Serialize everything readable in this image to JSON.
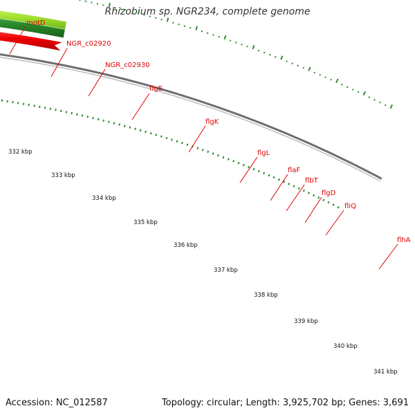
{
  "title": "Rhizobium sp. NGR234, complete genome",
  "footer": {
    "accession": "Accession: NC_012587",
    "stats": "Topology: circular; Length: 3,925,702 bp; Genes: 3,691"
  },
  "colors": {
    "background": "#ffffff",
    "label_red": "#e00000",
    "cds_red": "#ee0000",
    "gene_green": "#2a8a2a",
    "gene_olive": "#6f8f22",
    "gene_light_green": "#a6e234",
    "backbone": "#8a8a8a",
    "ruler_dots": "#2f8a2f"
  },
  "gene_labels": [
    "motD",
    "NGR_c02920",
    "NGR_c02930",
    "flgE",
    "flgK",
    "flgL",
    "flaF",
    "flbT",
    "flgD",
    "fliQ",
    "flhA"
  ],
  "ruler_labels": [
    "332 kbp",
    "333 kbp",
    "334 kbp",
    "335 kbp",
    "336 kbp",
    "337 kbp",
    "338 kbp",
    "339 kbp",
    "340 kbp",
    "341 kbp"
  ]
}
